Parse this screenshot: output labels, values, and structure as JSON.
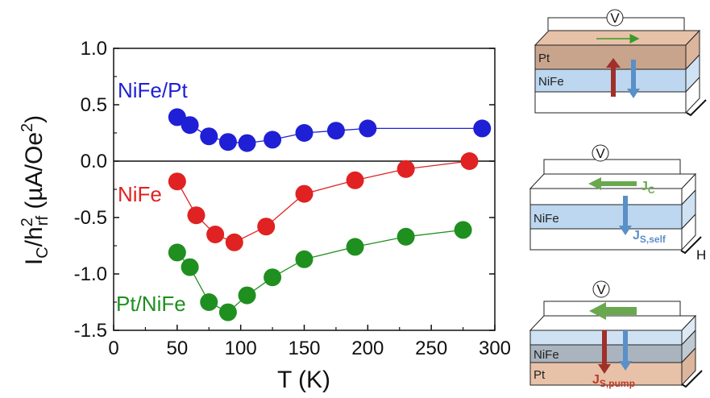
{
  "chart_data": {
    "type": "scatter",
    "xlabel": "T (K)",
    "ylabel_main": "I",
    "ylabel_sub": "C",
    "ylabel_rest": "/h",
    "ylabel_sup": "2",
    "ylabel_sub2": "rf",
    "ylabel_unit": " (µA/Oe",
    "ylabel_unit_sup": "2",
    "ylabel_close": ")",
    "xlim": [
      0,
      300
    ],
    "ylim": [
      -1.5,
      1.0
    ],
    "xticks": [
      "0",
      "50",
      "100",
      "150",
      "200",
      "250",
      "300"
    ],
    "yticks": [
      "1.0",
      "0.5",
      "0.0",
      "-0.5",
      "-1.0",
      "-1.5"
    ],
    "series": [
      {
        "name": "NiFe/Pt",
        "color": "#1f1fd6",
        "x": [
          50,
          60,
          75,
          90,
          105,
          125,
          150,
          175,
          200,
          290
        ],
        "y": [
          0.39,
          0.32,
          0.22,
          0.17,
          0.16,
          0.19,
          0.25,
          0.27,
          0.29,
          0.29
        ]
      },
      {
        "name": "NiFe",
        "color": "#e02222",
        "x": [
          50,
          65,
          80,
          95,
          120,
          150,
          190,
          230,
          280
        ],
        "y": [
          -0.18,
          -0.48,
          -0.65,
          -0.72,
          -0.58,
          -0.29,
          -0.17,
          -0.07,
          0.0
        ]
      },
      {
        "name": "Pt/NiFe",
        "color": "#1f8f1f",
        "x": [
          50,
          60,
          75,
          90,
          105,
          125,
          150,
          190,
          230,
          275
        ],
        "y": [
          -0.81,
          -0.94,
          -1.25,
          -1.34,
          -1.19,
          -1.03,
          -0.87,
          -0.76,
          -0.67,
          -0.61
        ]
      }
    ]
  },
  "diagrams": {
    "top": {
      "v_label": "V",
      "layer_top": "Pt",
      "layer_bottom": "NiFe"
    },
    "middle": {
      "v_label": "V",
      "jc_main": "J",
      "jc_sub": "C",
      "layer": "NiFe",
      "js_main": "J",
      "js_sub": "S,self",
      "field_label": "H"
    },
    "bottom": {
      "v_label": "V",
      "layer_top": "NiFe",
      "layer_bottom": "Pt",
      "js_main": "J",
      "js_sub": "S,pump"
    }
  }
}
